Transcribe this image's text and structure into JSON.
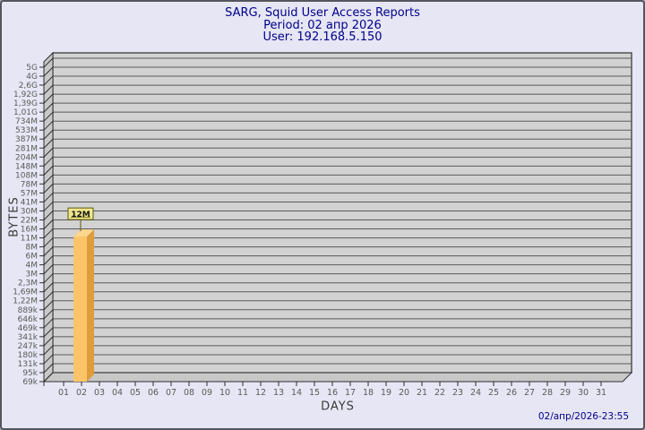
{
  "header": {
    "title": "SARG, Squid User Access Reports",
    "period": "Period: 02 апр 2026",
    "user": "User: 192.168.5.150"
  },
  "footer": {
    "generated": "02/апр/2026-23:55"
  },
  "colors": {
    "background": "#E6E6F4",
    "frame_border": "#55555E",
    "title_text": "#00008B",
    "band": "#D2D2D2",
    "wall": "#C8C8C8",
    "grid_line": "#5A5A5C",
    "wall_border": "#303030",
    "axis": "#2E2E2E",
    "tick_label": "#5A5A5A",
    "bar_front": "#FBC468",
    "bar_side": "#DE9C3C",
    "bar_top": "#FCD68C",
    "annotation_bg": "#F0E68C",
    "annotation_border": "#5B5B10",
    "annotation_text": "#141414",
    "timestamp_text": "#00008B"
  },
  "chart_data": {
    "type": "bar",
    "title": "SARG, Squid User Access Reports",
    "subtitle": "Period: 02 апр 2026",
    "user": "User: 192.168.5.150",
    "xlabel": "DAYS",
    "ylabel": "BYTES",
    "scale": "log",
    "legend": "none",
    "grid": "horizontal",
    "categories": [
      "01",
      "02",
      "03",
      "04",
      "05",
      "06",
      "07",
      "08",
      "09",
      "10",
      "11",
      "12",
      "13",
      "14",
      "15",
      "16",
      "17",
      "18",
      "19",
      "20",
      "21",
      "22",
      "23",
      "24",
      "25",
      "26",
      "27",
      "28",
      "29",
      "30",
      "31"
    ],
    "values": [
      0,
      12582912,
      0,
      0,
      0,
      0,
      0,
      0,
      0,
      0,
      0,
      0,
      0,
      0,
      0,
      0,
      0,
      0,
      0,
      0,
      0,
      0,
      0,
      0,
      0,
      0,
      0,
      0,
      0,
      0,
      0
    ],
    "bar_value_labels": [
      "",
      "12M",
      "",
      "",
      "",
      "",
      "",
      "",
      "",
      "",
      "",
      "",
      "",
      "",
      "",
      "",
      "",
      "",
      "",
      "",
      "",
      "",
      "",
      "",
      "",
      "",
      "",
      "",
      "",
      "",
      ""
    ],
    "y_tick_labels": [
      "5G",
      "4G",
      "2,6G",
      "1,92G",
      "1,39G",
      "1,01G",
      "734M",
      "533M",
      "387M",
      "281M",
      "204M",
      "148M",
      "108M",
      "78M",
      "57M",
      "41M",
      "30M",
      "22M",
      "16M",
      "11M",
      "8M",
      "6M",
      "4M",
      "3M",
      "2,3M",
      "1,69M",
      "1,22M",
      "889k",
      "646k",
      "469k",
      "341k",
      "247k",
      "180k",
      "131k",
      "95k",
      "69k"
    ],
    "y_range_bytes": [
      70656,
      5368709120
    ],
    "annotation": {
      "day": "02",
      "text": "12M"
    }
  }
}
